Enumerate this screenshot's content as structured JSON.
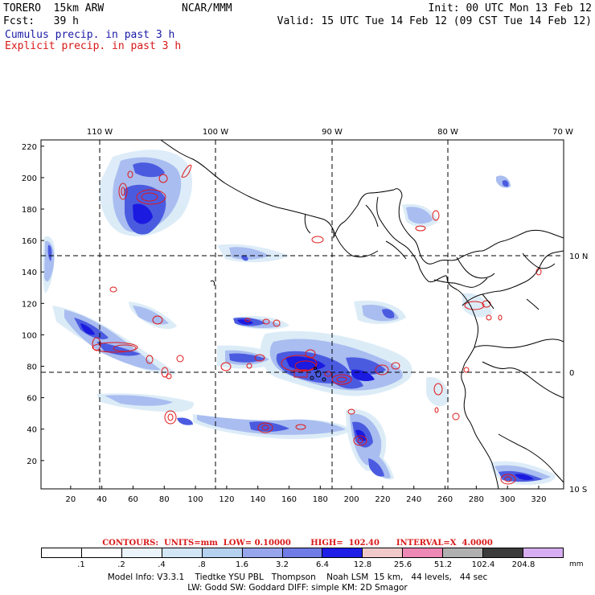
{
  "header": {
    "line1_left": "TORERO  15km ARW",
    "line1_center": "NCAR/MMM",
    "line1_right": "Init: 00 UTC Mon 13 Feb 12",
    "line2_left": "Fcst:   39 h",
    "line2_right": "Valid: 15 UTC Tue 14 Feb 12 (09 CST Tue 14 Feb 12)",
    "line3": "Cumulus precip. in past 3 h",
    "line4": "Explicit precip. in past 3 h"
  },
  "map": {
    "top_lon_labels": [
      "110 W",
      "100 W",
      "90 W",
      "80 W",
      "70 W"
    ],
    "right_lat_labels": [
      "10 N",
      "0",
      "10 S"
    ],
    "left_ticks": [
      "220",
      "200",
      "180",
      "160",
      "140",
      "120",
      "100",
      "80",
      "60",
      "40",
      "20"
    ],
    "bottom_ticks": [
      "20",
      "40",
      "60",
      "80",
      "100",
      "120",
      "140",
      "160",
      "180",
      "200",
      "220",
      "240",
      "260",
      "280",
      "300",
      "320"
    ],
    "colors": {
      "coast": "#000000",
      "grid": "#000000",
      "explicit_contour": "#e01818"
    }
  },
  "contours_line": {
    "text": "CONTOURS:  UNITS=mm  LOW= 0.10000       HIGH=  102.40      INTERVAL=X  4.0000"
  },
  "legend": {
    "labels": [
      ".1",
      ".2",
      ".4",
      ".8",
      "1.6",
      "3.2",
      "6.4",
      "12.8",
      "25.6",
      "51.2",
      "102.4",
      "204.8"
    ],
    "colors": [
      "#ffffff",
      "#ffffff",
      "#ecf4fb",
      "#d2e6f6",
      "#b4d1f0",
      "#96a5ec",
      "#6f7ce6",
      "#1e1ee6",
      "#f2c9c9",
      "#ee88b4",
      "#b0b0b0",
      "#3c3c3c",
      "#d8aef2"
    ],
    "unit": "mm"
  },
  "footer": {
    "line1": "Model Info: V3.3.1    Tiedtke YSU PBL   Thompson    Noah LSM  15 km,   44 levels,   44 sec",
    "line2": "LW: Godd SW: Goddard DIFF: simple KM: 2D Smagor"
  }
}
